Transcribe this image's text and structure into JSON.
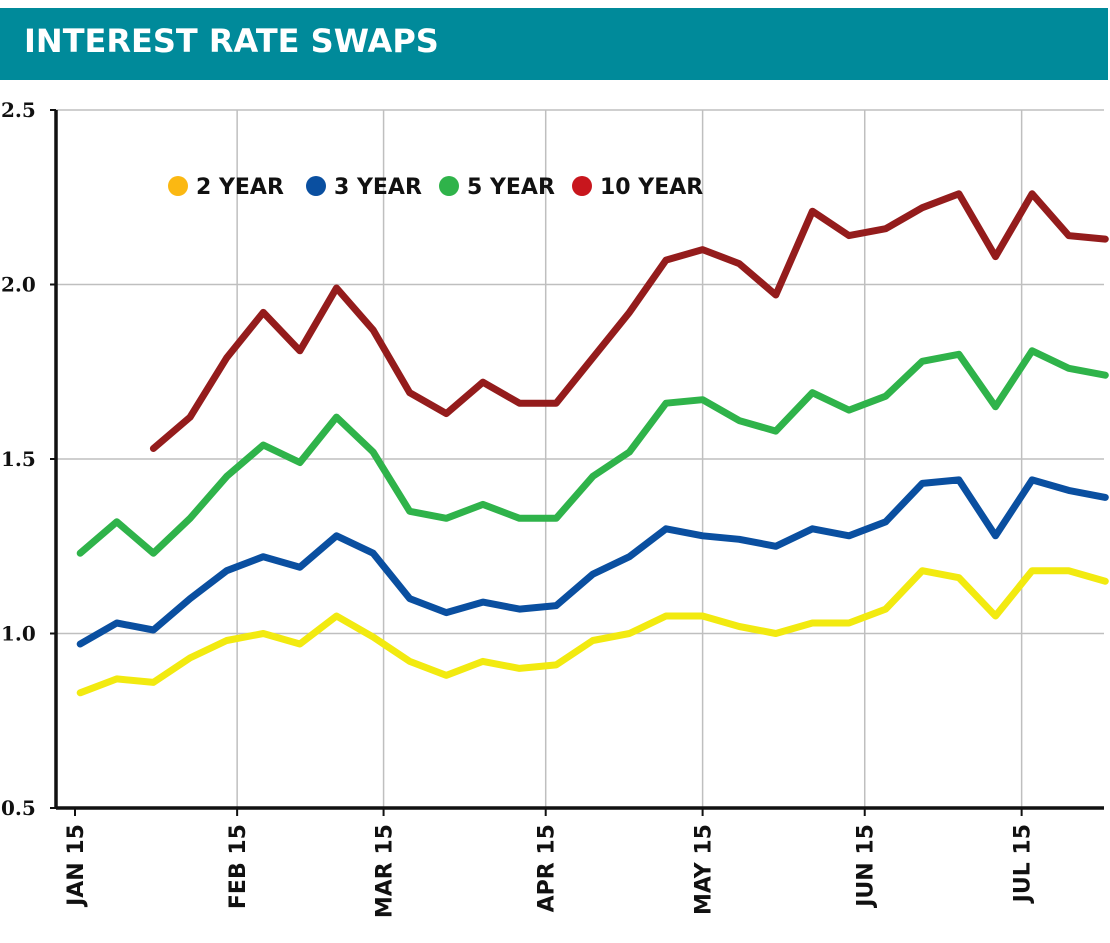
{
  "header": {
    "title": "INTEREST RATE SWAPS"
  },
  "colors": {
    "header_bg": "#008a9a",
    "grid": "#bfbfbf",
    "axis": "#111111"
  },
  "chart_data": {
    "type": "line",
    "title": "INTEREST RATE SWAPS",
    "xlabel": "",
    "ylabel": "",
    "ylim": [
      0.5,
      2.5
    ],
    "yticks": [
      0.5,
      1.0,
      1.5,
      2.0,
      2.5
    ],
    "ytick_labels": [
      "0.5",
      "1.0",
      "1.5",
      "2.0",
      "2.5"
    ],
    "grid": true,
    "legend_position": "top-left",
    "x_dates": [
      "2015-01-02",
      "2015-01-09",
      "2015-01-16",
      "2015-01-23",
      "2015-01-30",
      "2015-02-06",
      "2015-02-13",
      "2015-02-20",
      "2015-02-27",
      "2015-03-06",
      "2015-03-13",
      "2015-03-20",
      "2015-03-27",
      "2015-04-03",
      "2015-04-10",
      "2015-04-17",
      "2015-04-24",
      "2015-05-01",
      "2015-05-08",
      "2015-05-15",
      "2015-05-22",
      "2015-05-29",
      "2015-06-05",
      "2015-06-12",
      "2015-06-19",
      "2015-06-26",
      "2015-07-03",
      "2015-07-10",
      "2015-07-17",
      "2015-07-24"
    ],
    "x_ticks": [
      {
        "date": "2015-01-01",
        "label": "JAN 15"
      },
      {
        "date": "2015-02-01",
        "label": "FEB 15"
      },
      {
        "date": "2015-03-01",
        "label": "MAR 15"
      },
      {
        "date": "2015-04-01",
        "label": "APR 15"
      },
      {
        "date": "2015-05-01",
        "label": "MAY 15"
      },
      {
        "date": "2015-06-01",
        "label": "JUN 15"
      },
      {
        "date": "2015-07-01",
        "label": "JUL 15"
      }
    ],
    "series": [
      {
        "name": "2 YEAR",
        "color": "#f2ea10",
        "values": [
          0.83,
          0.87,
          0.86,
          0.93,
          0.98,
          1.0,
          0.97,
          1.05,
          0.99,
          0.92,
          0.88,
          0.92,
          0.9,
          0.91,
          0.98,
          1.0,
          1.05,
          1.05,
          1.02,
          1.0,
          1.03,
          1.03,
          1.07,
          1.18,
          1.16,
          1.05,
          1.18,
          1.18,
          1.15,
          null
        ]
      },
      {
        "name": "3 YEAR",
        "color": "#0a4fa0",
        "values": [
          0.97,
          1.03,
          1.01,
          1.1,
          1.18,
          1.22,
          1.19,
          1.28,
          1.23,
          1.1,
          1.06,
          1.09,
          1.07,
          1.08,
          1.17,
          1.22,
          1.3,
          1.28,
          1.27,
          1.25,
          1.3,
          1.28,
          1.32,
          1.43,
          1.44,
          1.28,
          1.44,
          1.41,
          1.39,
          null
        ]
      },
      {
        "name": "5 YEAR",
        "color": "#2fb34a",
        "values": [
          1.23,
          1.32,
          1.23,
          1.33,
          1.45,
          1.54,
          1.49,
          1.62,
          1.52,
          1.35,
          1.33,
          1.37,
          1.33,
          1.33,
          1.45,
          1.52,
          1.66,
          1.67,
          1.61,
          1.58,
          1.69,
          1.64,
          1.68,
          1.78,
          1.8,
          1.65,
          1.81,
          1.76,
          1.74,
          null
        ]
      },
      {
        "name": "10 YEAR",
        "color": "#941c1c",
        "values": [
          null,
          null,
          1.53,
          1.62,
          1.79,
          1.92,
          1.81,
          1.99,
          1.87,
          1.69,
          1.63,
          1.72,
          1.66,
          1.66,
          1.79,
          1.92,
          2.07,
          2.1,
          2.06,
          1.97,
          2.21,
          2.14,
          2.16,
          2.22,
          2.26,
          2.08,
          2.26,
          2.14,
          2.13,
          null
        ]
      }
    ],
    "legend_marker_colors": [
      "#fbb812",
      "#0a4fa0",
      "#2fb34a",
      "#c8161d"
    ]
  }
}
